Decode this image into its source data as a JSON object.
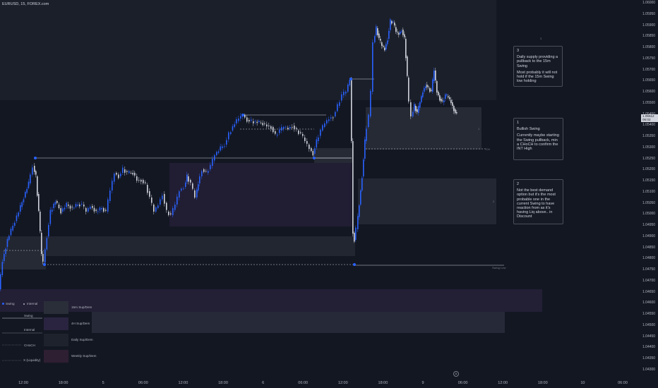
{
  "symbol_title": "EURUSD, 15, FOREX.com",
  "price_axis": [
    "1.06000",
    "1.05950",
    "1.05900",
    "1.05850",
    "1.05800",
    "1.05750",
    "1.05700",
    "1.05650",
    "1.05600",
    "1.05500",
    "1.05450",
    "1.05400",
    "1.05350",
    "1.05300",
    "1.05250",
    "1.05200",
    "1.05150",
    "1.05100",
    "1.05050",
    "1.05000",
    "1.04950",
    "1.04900",
    "1.04850",
    "1.04800",
    "1.04750",
    "1.04700",
    "1.04650",
    "1.04600",
    "1.04550",
    "1.04500",
    "1.04450",
    "1.04400",
    "1.04350",
    "1.04300"
  ],
  "current_price": {
    "value": "1.05512",
    "countdown": "06:02",
    "color": "#d1d4dc"
  },
  "time_axis": [
    "12:00",
    "18:00",
    "5",
    "06:00",
    "12:00",
    "18:00",
    "6",
    "06:00",
    "12:00",
    "18:00",
    "9",
    "06:00",
    "12:00",
    "18:00",
    "10",
    "06:00"
  ],
  "notes": [
    {
      "num": "3",
      "lines": [
        "Daily supply providing a pullback to the 15m Swing",
        "Most probably it will not hold if the 15m Swing low holding"
      ]
    },
    {
      "num": "1",
      "lines": [
        "Bullish Swing",
        "Currently maybe starting the Swing pullback, min a CHoCH to confirm the INT High"
      ]
    },
    {
      "num": "2",
      "lines": [
        "Not the best demand option but it's the most probable one in the current Swing to  have reaction from as it's having Liq above.. in Discount"
      ]
    }
  ],
  "chart_labels": {
    "swing_low": "Swing Low",
    "ch": "CH",
    "tag_3": "3",
    "tag_1": "1",
    "tag_2": "2"
  },
  "legend": {
    "swing": "Swing",
    "internal": "Internal",
    "row_swing": "Swing",
    "row_internal": "Internal",
    "row_choch": "CHoCH",
    "row_liq": "X (Liquidity)",
    "zones": [
      "15m Sup/Dem",
      "4H Sup/Dem",
      "Daily Sup/Dem",
      "Weekly Sup/Dem"
    ]
  },
  "colors": {
    "background": "#131722",
    "bull": "#2962ff",
    "bear": "#d1d4dc",
    "zone_15m": "#2a2e39",
    "zone_4h": "#2a2440",
    "zone_daily": "#1e222d",
    "zone_weekly": "#2f1f33"
  },
  "buttons": {
    "goto_realtime": "A"
  }
}
